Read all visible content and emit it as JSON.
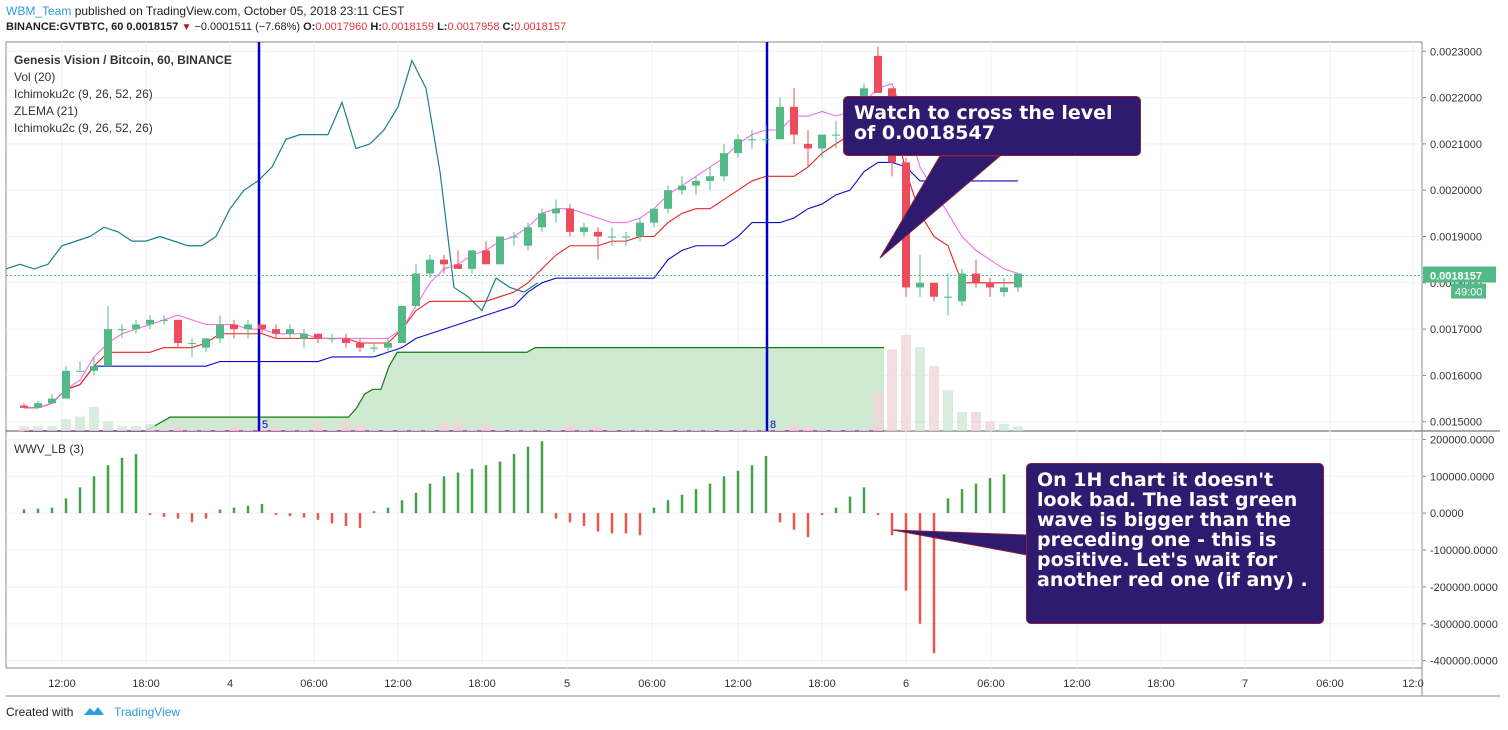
{
  "header": {
    "user": "WBM_Team",
    "published": "published on TradingView.com, October 05, 2018 23:11 CEST",
    "symbol": "BINANCE:GVTBTC, 60",
    "last": "0.0018157",
    "change": "−0.0001511 (−7.68%)",
    "o_label": "O:",
    "o_value": "0.0017960",
    "h_label": "H:",
    "h_value": "0.0018159",
    "l_label": "L:",
    "l_value": "0.0017958",
    "c_label": "C:",
    "c_value": "0.0018157"
  },
  "legend": {
    "title": "Genesis Vision / Bitcoin, 60, BINANCE",
    "items": [
      "Vol (20)",
      "Ichimoku2c (9, 26, 52, 26)",
      "ZLEMA (21)",
      "Ichimoku2c (9, 26, 52, 26)"
    ]
  },
  "callouts": {
    "top": "Watch to cross the level of 0.0018547",
    "bottom": "On 1H chart it doesn't look bad. The last green wave is bigger than the preceding one - this is positive. Let's wait for another red one (if any) ."
  },
  "footer": {
    "created": "Created with",
    "brand": "TradingView"
  },
  "colors": {
    "up": "#53b987",
    "down": "#eb4d5c",
    "tenkan": "#e8231f",
    "kijun": "#0b0bd0",
    "zlema": "#ee6fe8",
    "chikou": "#1b7f86",
    "senkou_a": "#127b12",
    "senkou_b": "#7a1f7a",
    "cloud": "#c8e6c9",
    "osc_up": "#43a047",
    "osc_down": "#ef5350",
    "vline": "#0000cc"
  },
  "chart_data": {
    "type": "candlestick",
    "symbol": "GVTBTC",
    "timeframe": "60",
    "ylim": [
      0.00148,
      0.00232
    ],
    "yticks": [
      "0.0015000",
      "0.0016000",
      "0.0017000",
      "0.0018000",
      "0.0019000",
      "0.0020000",
      "0.0021000",
      "0.0022000",
      "0.0023000"
    ],
    "last_price_label": "0.0018157",
    "countdown_label": "49:00",
    "xtick_labels": [
      "12:00",
      "18:00",
      "4",
      "06:00",
      "12:00",
      "18:00",
      "5",
      "06:00",
      "12:00",
      "18:00",
      "6",
      "06:00",
      "12:00",
      "18:00",
      "7",
      "06:00",
      "12:0"
    ],
    "vertical_markers": [
      {
        "label": "5"
      },
      {
        "label": "8"
      }
    ],
    "candles": [
      {
        "o": 0.001535,
        "h": 0.00154,
        "l": 0.00153,
        "c": 0.00153
      },
      {
        "o": 0.00153,
        "h": 0.001545,
        "l": 0.00153,
        "c": 0.00154
      },
      {
        "o": 0.00154,
        "h": 0.00156,
        "l": 0.00154,
        "c": 0.00155
      },
      {
        "o": 0.00155,
        "h": 0.00162,
        "l": 0.00155,
        "c": 0.00161
      },
      {
        "o": 0.00161,
        "h": 0.00163,
        "l": 0.00161,
        "c": 0.00161
      },
      {
        "o": 0.00161,
        "h": 0.00164,
        "l": 0.0016,
        "c": 0.00162
      },
      {
        "o": 0.00162,
        "h": 0.00175,
        "l": 0.00162,
        "c": 0.0017
      },
      {
        "o": 0.0017,
        "h": 0.00171,
        "l": 0.00168,
        "c": 0.0017
      },
      {
        "o": 0.0017,
        "h": 0.00172,
        "l": 0.00169,
        "c": 0.00171
      },
      {
        "o": 0.00171,
        "h": 0.00173,
        "l": 0.0017,
        "c": 0.00172
      },
      {
        "o": 0.00172,
        "h": 0.00173,
        "l": 0.00171,
        "c": 0.00172
      },
      {
        "o": 0.00172,
        "h": 0.00172,
        "l": 0.00166,
        "c": 0.00167
      },
      {
        "o": 0.00167,
        "h": 0.00168,
        "l": 0.00164,
        "c": 0.00167
      },
      {
        "o": 0.00166,
        "h": 0.00168,
        "l": 0.00165,
        "c": 0.00168
      },
      {
        "o": 0.00168,
        "h": 0.00173,
        "l": 0.00167,
        "c": 0.00171
      },
      {
        "o": 0.00171,
        "h": 0.00172,
        "l": 0.00168,
        "c": 0.0017
      },
      {
        "o": 0.0017,
        "h": 0.00172,
        "l": 0.00168,
        "c": 0.00171
      },
      {
        "o": 0.00171,
        "h": 0.00171,
        "l": 0.00169,
        "c": 0.0017
      },
      {
        "o": 0.0017,
        "h": 0.00171,
        "l": 0.00168,
        "c": 0.00169
      },
      {
        "o": 0.00169,
        "h": 0.00171,
        "l": 0.00168,
        "c": 0.0017
      },
      {
        "o": 0.00168,
        "h": 0.0017,
        "l": 0.00166,
        "c": 0.00169
      },
      {
        "o": 0.00169,
        "h": 0.00169,
        "l": 0.00167,
        "c": 0.00168
      },
      {
        "o": 0.00168,
        "h": 0.00169,
        "l": 0.00167,
        "c": 0.00168
      },
      {
        "o": 0.00168,
        "h": 0.00169,
        "l": 0.00166,
        "c": 0.00167
      },
      {
        "o": 0.00167,
        "h": 0.00168,
        "l": 0.00165,
        "c": 0.00166
      },
      {
        "o": 0.00166,
        "h": 0.00167,
        "l": 0.00165,
        "c": 0.00166
      },
      {
        "o": 0.00166,
        "h": 0.00168,
        "l": 0.00165,
        "c": 0.00167
      },
      {
        "o": 0.00167,
        "h": 0.00175,
        "l": 0.00167,
        "c": 0.00175
      },
      {
        "o": 0.00175,
        "h": 0.00184,
        "l": 0.00175,
        "c": 0.00182
      },
      {
        "o": 0.00182,
        "h": 0.00186,
        "l": 0.00181,
        "c": 0.00185
      },
      {
        "o": 0.00185,
        "h": 0.00186,
        "l": 0.00182,
        "c": 0.00184
      },
      {
        "o": 0.00184,
        "h": 0.00187,
        "l": 0.00183,
        "c": 0.00183
      },
      {
        "o": 0.00183,
        "h": 0.00187,
        "l": 0.00182,
        "c": 0.00187
      },
      {
        "o": 0.00187,
        "h": 0.00189,
        "l": 0.00184,
        "c": 0.00184
      },
      {
        "o": 0.00184,
        "h": 0.0019,
        "l": 0.00184,
        "c": 0.0019
      },
      {
        "o": 0.0019,
        "h": 0.00191,
        "l": 0.00188,
        "c": 0.0019
      },
      {
        "o": 0.00188,
        "h": 0.00193,
        "l": 0.00187,
        "c": 0.00192
      },
      {
        "o": 0.00192,
        "h": 0.00196,
        "l": 0.00191,
        "c": 0.00195
      },
      {
        "o": 0.00195,
        "h": 0.00198,
        "l": 0.00193,
        "c": 0.00196
      },
      {
        "o": 0.00196,
        "h": 0.00197,
        "l": 0.0019,
        "c": 0.00191
      },
      {
        "o": 0.00191,
        "h": 0.00193,
        "l": 0.0019,
        "c": 0.00192
      },
      {
        "o": 0.00191,
        "h": 0.00192,
        "l": 0.00185,
        "c": 0.0019
      },
      {
        "o": 0.0019,
        "h": 0.00192,
        "l": 0.00188,
        "c": 0.0019
      },
      {
        "o": 0.0019,
        "h": 0.00191,
        "l": 0.00188,
        "c": 0.0019
      },
      {
        "o": 0.0019,
        "h": 0.00194,
        "l": 0.00189,
        "c": 0.00193
      },
      {
        "o": 0.00193,
        "h": 0.00196,
        "l": 0.00192,
        "c": 0.00196
      },
      {
        "o": 0.00196,
        "h": 0.00201,
        "l": 0.00195,
        "c": 0.002
      },
      {
        "o": 0.002,
        "h": 0.00203,
        "l": 0.00199,
        "c": 0.00201
      },
      {
        "o": 0.00201,
        "h": 0.00203,
        "l": 0.00199,
        "c": 0.00202
      },
      {
        "o": 0.00202,
        "h": 0.00205,
        "l": 0.002,
        "c": 0.00203
      },
      {
        "o": 0.00203,
        "h": 0.0021,
        "l": 0.00202,
        "c": 0.00208
      },
      {
        "o": 0.00208,
        "h": 0.00212,
        "l": 0.00207,
        "c": 0.00211
      },
      {
        "o": 0.00211,
        "h": 0.00213,
        "l": 0.00209,
        "c": 0.00211
      },
      {
        "o": 0.00211,
        "h": 0.00214,
        "l": 0.0021,
        "c": 0.00211
      },
      {
        "o": 0.00211,
        "h": 0.0022,
        "l": 0.00211,
        "c": 0.00218
      },
      {
        "o": 0.00218,
        "h": 0.00222,
        "l": 0.0021,
        "c": 0.00212
      },
      {
        "o": 0.0021,
        "h": 0.00213,
        "l": 0.00205,
        "c": 0.00209
      },
      {
        "o": 0.00209,
        "h": 0.00212,
        "l": 0.00207,
        "c": 0.00212
      },
      {
        "o": 0.00212,
        "h": 0.00215,
        "l": 0.00209,
        "c": 0.00212
      },
      {
        "o": 0.00212,
        "h": 0.00217,
        "l": 0.00211,
        "c": 0.00216
      },
      {
        "o": 0.00216,
        "h": 0.00223,
        "l": 0.00214,
        "c": 0.00222
      },
      {
        "o": 0.00229,
        "h": 0.00231,
        "l": 0.00221,
        "c": 0.00221
      },
      {
        "o": 0.00222,
        "h": 0.00222,
        "l": 0.00203,
        "c": 0.00206
      },
      {
        "o": 0.00206,
        "h": 0.00207,
        "l": 0.00177,
        "c": 0.00179
      },
      {
        "o": 0.00179,
        "h": 0.00186,
        "l": 0.00177,
        "c": 0.0018
      },
      {
        "o": 0.0018,
        "h": 0.0018,
        "l": 0.00176,
        "c": 0.00177
      },
      {
        "o": 0.00177,
        "h": 0.00182,
        "l": 0.00173,
        "c": 0.00177
      },
      {
        "o": 0.00176,
        "h": 0.00183,
        "l": 0.00175,
        "c": 0.00182
      },
      {
        "o": 0.00182,
        "h": 0.00185,
        "l": 0.00179,
        "c": 0.0018
      },
      {
        "o": 0.0018,
        "h": 0.00181,
        "l": 0.00177,
        "c": 0.00179
      },
      {
        "o": 0.00178,
        "h": 0.00181,
        "l": 0.00177,
        "c": 0.00179
      },
      {
        "o": 0.00179,
        "h": 0.00182,
        "l": 0.00178,
        "c": 0.00182
      }
    ],
    "volume": [
      0.2,
      0.2,
      0.2,
      0.5,
      0.6,
      1.0,
      0.4,
      0.2,
      0.2,
      0.3,
      0.2,
      0.2,
      0.2,
      0.2,
      0.2,
      0.2,
      0.2,
      0.2,
      0.2,
      0.2,
      0.3,
      0.4,
      0.3,
      0.4,
      0.3,
      0.3,
      0.2,
      0.3,
      0.6,
      0.6,
      0.4,
      0.4,
      0.3,
      0.3,
      0.3,
      0.4,
      0.2,
      0.2,
      0.4,
      0.3,
      0.2,
      0.2,
      0.2,
      0.2,
      0.4,
      0.6,
      0.8,
      0.4,
      0.3,
      0.2,
      0.3,
      0.5,
      0.2,
      0.2,
      0.4,
      0.3,
      0.2,
      0.2,
      0.3,
      0.2,
      0.8,
      1.6,
      3.4,
      4.0,
      3.5,
      2.7,
      1.7,
      0.8,
      0.8,
      0.4,
      0.3,
      0.2
    ],
    "tenkan": [
      0.00153,
      0.00153,
      0.00154,
      0.00157,
      0.00158,
      0.00162,
      0.00165,
      0.00165,
      0.00165,
      0.00165,
      0.00166,
      0.00166,
      0.00166,
      0.00167,
      0.00169,
      0.00169,
      0.00169,
      0.00169,
      0.00168,
      0.00168,
      0.00168,
      0.00168,
      0.00168,
      0.00168,
      0.00167,
      0.00167,
      0.00167,
      0.0017,
      0.00174,
      0.00176,
      0.00176,
      0.00176,
      0.00176,
      0.00176,
      0.00177,
      0.00178,
      0.0018,
      0.00183,
      0.00186,
      0.00188,
      0.00188,
      0.00188,
      0.00189,
      0.00189,
      0.0019,
      0.0019,
      0.00193,
      0.00195,
      0.00196,
      0.00196,
      0.00198,
      0.002,
      0.00202,
      0.00203,
      0.00203,
      0.00203,
      0.00205,
      0.00208,
      0.0021,
      0.00212,
      0.00215,
      0.00217,
      0.00217,
      0.00204,
      0.00195,
      0.0019,
      0.00188,
      0.0018,
      0.0018,
      0.0018,
      0.0018,
      0.0018
    ],
    "kijun": [
      0.00153,
      0.00153,
      0.00154,
      0.00157,
      0.00158,
      0.00162,
      0.00162,
      0.00162,
      0.00162,
      0.00162,
      0.00162,
      0.00162,
      0.00162,
      0.00162,
      0.00163,
      0.00163,
      0.00163,
      0.00163,
      0.00163,
      0.00163,
      0.00163,
      0.00163,
      0.00164,
      0.00164,
      0.00164,
      0.00164,
      0.00165,
      0.00166,
      0.00168,
      0.00169,
      0.0017,
      0.00171,
      0.00172,
      0.00173,
      0.00174,
      0.00175,
      0.00178,
      0.0018,
      0.00181,
      0.00181,
      0.00181,
      0.00181,
      0.00181,
      0.00181,
      0.00181,
      0.00181,
      0.00185,
      0.00187,
      0.00188,
      0.00188,
      0.00188,
      0.0019,
      0.00193,
      0.00193,
      0.00193,
      0.00194,
      0.00196,
      0.00197,
      0.00199,
      0.002,
      0.00204,
      0.00206,
      0.00206,
      0.00205,
      0.00202,
      0.00202,
      0.00202,
      0.00202,
      0.00202,
      0.00202,
      0.00202,
      0.00202
    ],
    "zlema": [
      0.00153,
      0.00153,
      0.00154,
      0.00157,
      0.00159,
      0.00164,
      0.00167,
      0.00169,
      0.0017,
      0.00171,
      0.00172,
      0.00173,
      0.00172,
      0.00171,
      0.00171,
      0.00171,
      0.0017,
      0.0017,
      0.00169,
      0.00169,
      0.00169,
      0.00168,
      0.00168,
      0.00168,
      0.00168,
      0.00168,
      0.00168,
      0.0017,
      0.00175,
      0.0018,
      0.00183,
      0.00184,
      0.00186,
      0.00187,
      0.00189,
      0.0019,
      0.00192,
      0.00195,
      0.00196,
      0.00196,
      0.00195,
      0.00194,
      0.00193,
      0.00193,
      0.00194,
      0.00196,
      0.00199,
      0.00201,
      0.00203,
      0.00205,
      0.00207,
      0.0021,
      0.00212,
      0.00213,
      0.00213,
      0.00216,
      0.00216,
      0.00217,
      0.00216,
      0.00217,
      0.00219,
      0.00222,
      0.00223,
      0.00215,
      0.00205,
      0.002,
      0.00195,
      0.0019,
      0.00187,
      0.00185,
      0.00183,
      0.00182
    ],
    "chikou": [
      0.00183,
      0.00184,
      0.00183,
      0.00184,
      0.00188,
      0.00189,
      0.0019,
      0.00192,
      0.00191,
      0.00189,
      0.00189,
      0.0019,
      0.00189,
      0.00188,
      0.00188,
      0.0019,
      0.00196,
      0.002,
      0.00202,
      0.00205,
      0.00211,
      0.00212,
      0.00212,
      0.00212,
      0.00219,
      0.00209,
      0.0021,
      0.00213,
      0.00218,
      0.00228,
      0.00222,
      0.00204,
      0.00179,
      0.00177,
      0.00174,
      0.00181,
      0.00179,
      0.00178,
      0.0018
    ],
    "senkou_a": [
      0.00148,
      0.00148,
      0.00148,
      0.00148,
      0.00148,
      0.00148,
      0.00148,
      0.00148,
      0.00148,
      0.00148,
      0.00148,
      0.00148,
      0.00148,
      0.00148,
      0.00148,
      0.00148,
      0.00149,
      0.0015,
      0.00151,
      0.00151,
      0.00151,
      0.00151,
      0.00151,
      0.00151,
      0.00151,
      0.00151,
      0.00151,
      0.00151,
      0.00151,
      0.00151,
      0.00151,
      0.00151,
      0.00151,
      0.00151,
      0.00151,
      0.00151,
      0.00151,
      0.00151,
      0.00151,
      0.00151,
      0.00151,
      0.00153,
      0.00156,
      0.00157,
      0.00157,
      0.00162,
      0.00165,
      0.00165,
      0.00165,
      0.00165,
      0.00165,
      0.00165,
      0.00165,
      0.00165,
      0.00165,
      0.00165,
      0.00165,
      0.00165,
      0.00165,
      0.00165,
      0.00165,
      0.00165,
      0.00165,
      0.00166,
      0.00166,
      0.00166,
      0.00166,
      0.00166,
      0.00166,
      0.00166,
      0.00166,
      0.00166,
      0.00166,
      0.00166,
      0.00166,
      0.00166,
      0.00166,
      0.00166,
      0.00166,
      0.00166,
      0.00166,
      0.00166,
      0.00166,
      0.00166,
      0.00166,
      0.00166,
      0.00166,
      0.00166,
      0.00166,
      0.00166,
      0.00166,
      0.00166,
      0.00166,
      0.00166,
      0.00166,
      0.00166,
      0.00166,
      0.00166,
      0.00166,
      0.00166,
      0.00166,
      0.00166,
      0.00166,
      0.00166,
      0.00166,
      0.00166,
      0.00166
    ],
    "wwv": [
      10000,
      12000,
      15000,
      40000,
      70000,
      100000,
      130000,
      150000,
      160000,
      -5000,
      -10000,
      -15000,
      -25000,
      -15000,
      10000,
      15000,
      20000,
      25000,
      -5000,
      -8000,
      -12000,
      -18000,
      -28000,
      -35000,
      -40000,
      5000,
      15000,
      35000,
      55000,
      80000,
      100000,
      110000,
      120000,
      130000,
      140000,
      160000,
      180000,
      195000,
      -15000,
      -25000,
      -35000,
      -50000,
      -55000,
      -55000,
      -60000,
      15000,
      35000,
      50000,
      65000,
      80000,
      100000,
      115000,
      130000,
      155000,
      -25000,
      -45000,
      -65000,
      -5000,
      15000,
      45000,
      70000,
      -5000,
      -60000,
      -210000,
      -300000,
      -380000,
      40000,
      65000,
      80000,
      95000,
      105000
    ],
    "osc_ylim": [
      -420000,
      220000
    ],
    "osc_yticks": [
      "200000.0000",
      "100000.0000",
      "0.0000",
      "-100000.0000",
      "-200000.0000",
      "-300000.0000",
      "-400000.0000"
    ],
    "osc_label": "WWV_LB (3)"
  }
}
